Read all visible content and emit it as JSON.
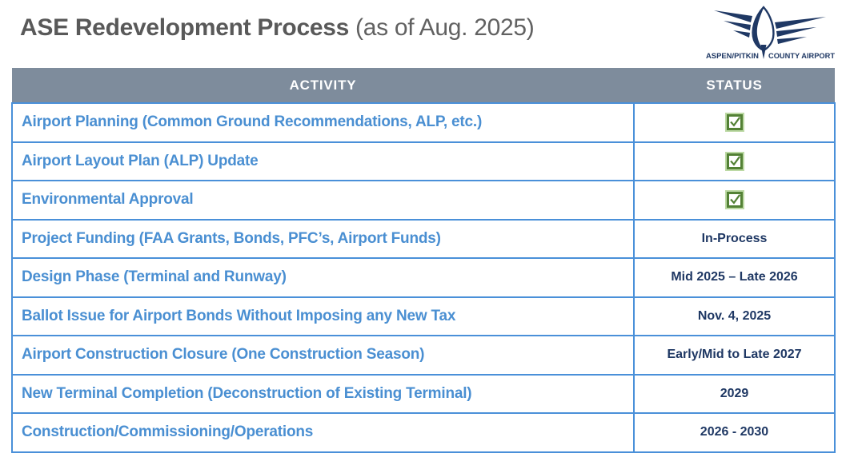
{
  "page": {
    "title_main": "ASE Redevelopment Process",
    "title_suffix": " (as of Aug. 2025)"
  },
  "logo": {
    "name": "Aspen/Pitkin County Airport logo",
    "text_left": "ASPEN/PITKIN",
    "text_right": "COUNTY AIRPORT",
    "color": "#1f3864"
  },
  "table": {
    "headers": [
      "ACTIVITY",
      "STATUS"
    ],
    "rows": [
      {
        "activity": "Airport Planning (Common Ground Recommendations, ALP, etc.)",
        "status": "checked"
      },
      {
        "activity": "Airport Layout Plan (ALP) Update",
        "status": "checked"
      },
      {
        "activity": "Environmental Approval",
        "status": "checked"
      },
      {
        "activity": "Project Funding (FAA Grants, Bonds, PFC’s, Airport Funds)",
        "status": "In-Process"
      },
      {
        "activity": "Design Phase (Terminal and Runway)",
        "status": "Mid 2025 – Late 2026"
      },
      {
        "activity": "Ballot Issue for Airport Bonds Without Imposing any New Tax",
        "status": "Nov. 4, 2025"
      },
      {
        "activity": "Airport Construction Closure (One Construction Season)",
        "status": "Early/Mid to Late 2027"
      },
      {
        "activity": "New Terminal Completion (Deconstruction of Existing Terminal)",
        "status": "2029"
      },
      {
        "activity": "Construction/Commissioning/Operations",
        "status": "2026 - 2030"
      }
    ],
    "colors": {
      "header_bg": "#7e8c9c",
      "header_text": "#ffffff",
      "activity_text": "#4a8fd2",
      "status_text": "#1f3864",
      "border": "#4a90d9",
      "check_green": "#538135",
      "check_halo": "#bcd9a4"
    }
  }
}
